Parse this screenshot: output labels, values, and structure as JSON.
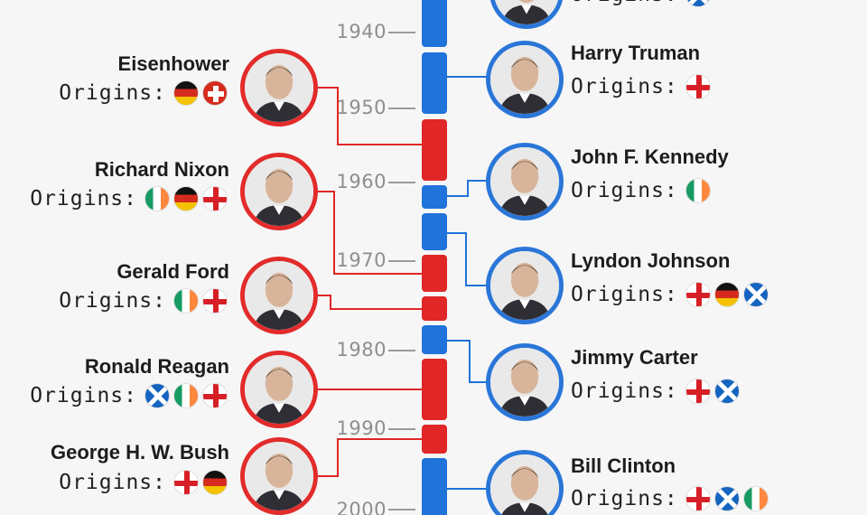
{
  "colors": {
    "democrat": "#1f73d9",
    "republican": "#e02626"
  },
  "labels": {
    "origins": "Origins:"
  },
  "years": [
    "1940",
    "1950",
    "1960",
    "1970",
    "1980",
    "1990",
    "2000"
  ],
  "presidents": {
    "fdr": {
      "name": "",
      "flags": [
        "scotland"
      ]
    },
    "truman": {
      "name": "Harry Truman",
      "flags": [
        "england"
      ]
    },
    "eisenhower": {
      "name": "Eisenhower",
      "flags": [
        "germany",
        "switzerland"
      ]
    },
    "kennedy": {
      "name": "John F. Kennedy",
      "flags": [
        "ireland"
      ]
    },
    "nixon": {
      "name": "Richard Nixon",
      "flags": [
        "ireland",
        "germany",
        "england"
      ]
    },
    "johnson": {
      "name": "Lyndon Johnson",
      "flags": [
        "england",
        "germany",
        "scotland"
      ]
    },
    "ford": {
      "name": "Gerald Ford",
      "flags": [
        "ireland",
        "england"
      ]
    },
    "carter": {
      "name": "Jimmy Carter",
      "flags": [
        "england",
        "scotland"
      ]
    },
    "reagan": {
      "name": "Ronald Reagan",
      "flags": [
        "scotland",
        "ireland",
        "england"
      ]
    },
    "bush": {
      "name": "George H. W. Bush",
      "flags": [
        "england",
        "germany"
      ]
    },
    "clinton": {
      "name": "Bill Clinton",
      "flags": [
        "england",
        "scotland",
        "ireland"
      ]
    }
  }
}
